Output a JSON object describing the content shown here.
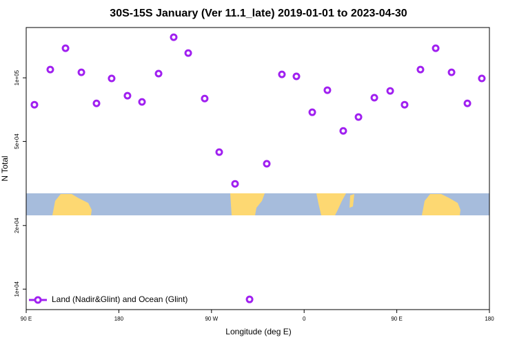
{
  "chart_data": {
    "type": "scatter",
    "title": "30S-15S January (Ver 11.1_late)   2019-01-01 to 2023-04-30",
    "x_label": "Longitude (deg E)",
    "y_label": "N Total",
    "log_y": true,
    "legend_position": "bottom-left",
    "xlim": [
      90,
      540
    ],
    "xticks": [
      {
        "value": 90,
        "label": "90 E"
      },
      {
        "value": 180,
        "label": "180"
      },
      {
        "value": 270,
        "label": "90 W"
      },
      {
        "value": 360,
        "label": "0"
      },
      {
        "value": 450,
        "label": "90 E"
      },
      {
        "value": 540,
        "label": "180"
      }
    ],
    "ylim": [
      8000,
      173000
    ],
    "yticks": [
      {
        "value": 10000,
        "label": "1e+04"
      },
      {
        "value": 20000,
        "label": "2e+04"
      },
      {
        "value": 50000,
        "label": "5e+04"
      },
      {
        "value": 100000,
        "label": "1e+05"
      }
    ],
    "series": [
      {
        "name": "Land (Nadir&Glint) and Ocean (Glint)",
        "color": "#a020f0",
        "x": [
          98.0,
          113.4,
          128.2,
          143.6,
          158.3,
          173.0,
          188.4,
          202.5,
          218.6,
          233.3,
          247.4,
          263.4,
          277.5,
          292.9,
          307.0,
          323.7,
          338.4,
          352.5,
          367.9,
          382.6,
          398.0,
          412.8,
          428.2,
          443.6,
          457.6,
          473.0,
          487.8,
          503.2,
          518.6,
          532.6
        ],
        "values": [
          74600,
          109400,
          138000,
          106200,
          75700,
          99300,
          82300,
          76900,
          104700,
          155600,
          131000,
          79800,
          44500,
          31500,
          8940,
          39200,
          103800,
          101600,
          68700,
          87400,
          56100,
          65200,
          80500,
          86700,
          74600,
          109400,
          138000,
          106200,
          75700,
          99300
        ]
      }
    ]
  }
}
